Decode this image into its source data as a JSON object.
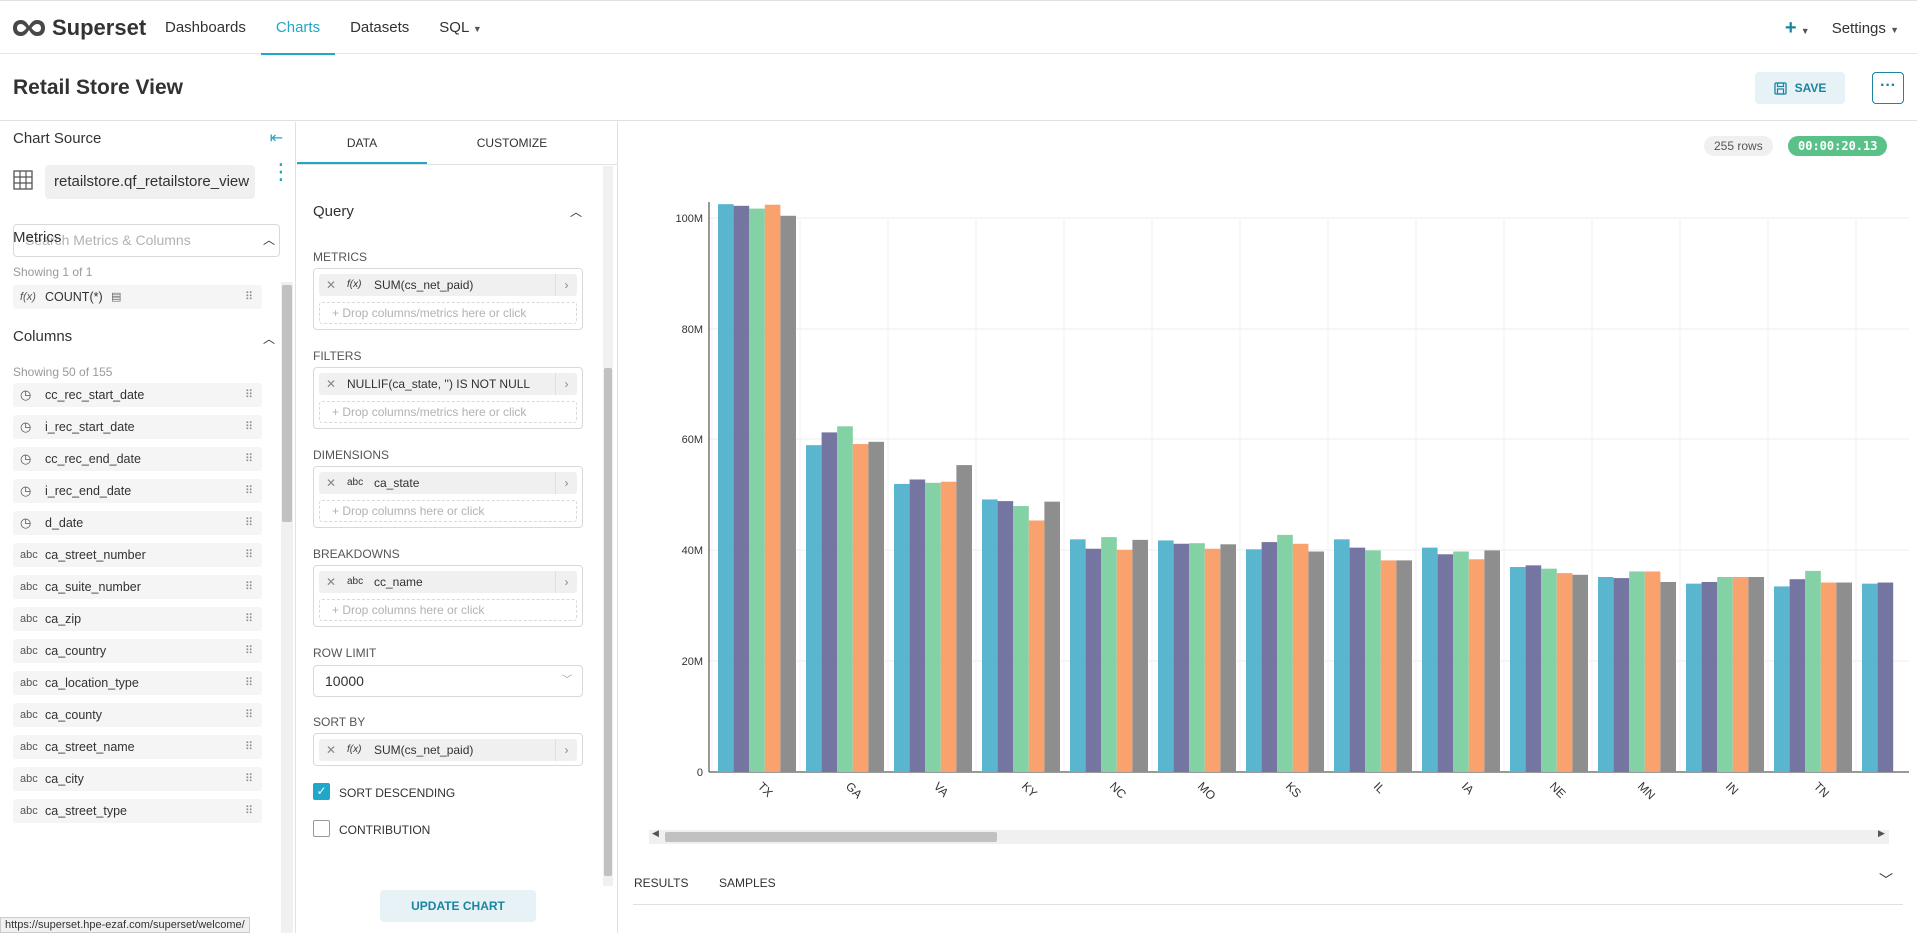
{
  "nav": {
    "brand": "Superset",
    "items": [
      "Dashboards",
      "Charts",
      "Datasets",
      "SQL"
    ],
    "active": "Charts",
    "plus": "+",
    "settings": "Settings"
  },
  "header": {
    "title": "Retail Store View",
    "save_label": "SAVE",
    "more_label": "···"
  },
  "datasource": {
    "section_title": "Chart Source",
    "name": "retailstore.qf_retailstore_view",
    "search_placeholder": "Search Metrics & Columns",
    "metrics_title": "Metrics",
    "metrics_showing": "Showing 1 of 1",
    "metrics": [
      {
        "icon": "f(x)",
        "label": "COUNT(*)"
      }
    ],
    "columns_title": "Columns",
    "columns_showing": "Showing 50 of 155",
    "columns": [
      {
        "icon": "clock-icon",
        "label": "cc_rec_start_date"
      },
      {
        "icon": "clock-icon",
        "label": "i_rec_start_date"
      },
      {
        "icon": "clock-icon",
        "label": "cc_rec_end_date"
      },
      {
        "icon": "clock-icon",
        "label": "i_rec_end_date"
      },
      {
        "icon": "clock-icon",
        "label": "d_date"
      },
      {
        "icon": "abc",
        "label": "ca_street_number"
      },
      {
        "icon": "abc",
        "label": "ca_suite_number"
      },
      {
        "icon": "abc",
        "label": "ca_zip"
      },
      {
        "icon": "abc",
        "label": "ca_country"
      },
      {
        "icon": "abc",
        "label": "ca_location_type"
      },
      {
        "icon": "abc",
        "label": "ca_county"
      },
      {
        "icon": "abc",
        "label": "ca_street_name"
      },
      {
        "icon": "abc",
        "label": "ca_city"
      },
      {
        "icon": "abc",
        "label": "ca_street_type"
      }
    ],
    "status_url": "https://superset.hpe-ezaf.com/superset/welcome/"
  },
  "controls": {
    "tabs": [
      "DATA",
      "CUSTOMIZE"
    ],
    "active_tab": "DATA",
    "query_title": "Query",
    "metrics_label": "METRICS",
    "metric_value": "SUM(cs_net_paid)",
    "metric_drop": "Drop columns/metrics here or click",
    "filters_label": "FILTERS",
    "filter_value": "NULLIF(ca_state, '') IS NOT NULL",
    "filter_drop": "Drop columns/metrics here or click",
    "dimensions_label": "DIMENSIONS",
    "dimension_value": "ca_state",
    "dimension_drop": "Drop columns here or click",
    "breakdowns_label": "BREAKDOWNS",
    "breakdown_value": "cc_name",
    "breakdown_drop": "Drop columns here or click",
    "row_limit_label": "ROW LIMIT",
    "row_limit_value": "10000",
    "sort_by_label": "SORT BY",
    "sort_by_value": "SUM(cs_net_paid)",
    "sort_desc_label": "SORT DESCENDING",
    "sort_desc_checked": true,
    "contribution_label": "CONTRIBUTION",
    "contribution_checked": false,
    "update_label": "UPDATE CHART"
  },
  "result": {
    "rows_badge": "255 rows",
    "time_badge": "00:00:20.13",
    "bottom_tabs": [
      "RESULTS",
      "SAMPLES"
    ]
  },
  "colors": {
    "accent": "#20a7c9",
    "series": [
      "#5ab6cf",
      "#7475a0",
      "#83d1a4",
      "#f9a26e",
      "#8e8e8e"
    ]
  },
  "chart_data": {
    "type": "bar",
    "categories": [
      "TX",
      "GA",
      "VA",
      "KY",
      "NC",
      "MO",
      "KS",
      "IL",
      "IA",
      "NE",
      "MN",
      "IN",
      "TN",
      ""
    ],
    "series": [
      {
        "values": [
          102.5,
          59,
          52,
          49.2,
          42,
          41.8,
          40.2,
          42,
          40.5,
          37,
          35.2,
          34,
          33.5,
          34
        ]
      },
      {
        "values": [
          102.2,
          61.3,
          52.8,
          48.9,
          40.3,
          41.2,
          41.5,
          40.5,
          39.3,
          37.3,
          35,
          34.3,
          34.8,
          34.2
        ]
      },
      {
        "values": [
          101.7,
          62.4,
          52.2,
          48,
          42.4,
          41.3,
          42.8,
          40,
          39.8,
          36.7,
          36.2,
          35.2,
          36.3,
          null
        ]
      },
      {
        "values": [
          102.4,
          59.2,
          52.4,
          45.4,
          40.1,
          40.3,
          41.2,
          38.2,
          38.4,
          35.9,
          36.2,
          35.2,
          34.2,
          null
        ]
      },
      {
        "values": [
          100.4,
          59.6,
          55.4,
          48.8,
          41.9,
          41.1,
          39.8,
          38.2,
          40,
          35.6,
          34.3,
          35.2,
          34.2,
          null
        ]
      }
    ],
    "y_ticks": [
      "0",
      "20M",
      "40M",
      "60M",
      "80M",
      "100M"
    ],
    "ylim": [
      0,
      100
    ],
    "grid": true,
    "legend": "none"
  }
}
